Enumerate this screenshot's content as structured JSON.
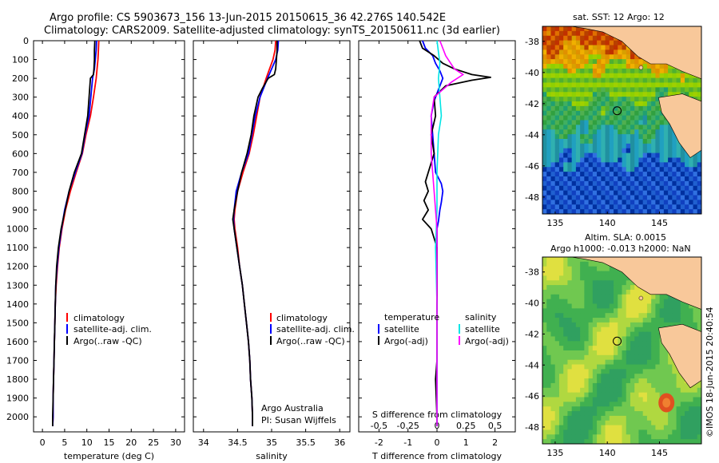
{
  "header": {
    "line1": "Argo profile: CS 5903673_156 13-Jun-2015 20150615_36 42.276S 140.542E",
    "line2": "Climatology: CARS2009. Satellite-adjusted climatology: synTS_20150611.nc (3d earlier)"
  },
  "colors": {
    "climatology": "#ff0000",
    "satellite": "#0000ff",
    "argo": "#000000",
    "sal_satellite": "#00e5e5",
    "sal_argo": "#ff00ff",
    "land": "#f8c89a"
  },
  "chart_data": [
    {
      "type": "line",
      "xlabel": "temperature (deg C)",
      "xlim": [
        -2,
        32
      ],
      "xticks": [
        0,
        5,
        10,
        15,
        20,
        25,
        30
      ],
      "ylim": [
        2080,
        0
      ],
      "yticks": [
        0,
        100,
        200,
        300,
        400,
        500,
        600,
        700,
        800,
        900,
        1000,
        1100,
        1200,
        1300,
        1400,
        1500,
        1600,
        1700,
        1800,
        1900,
        2000
      ],
      "legend": [
        "climatology",
        "satellite-adj. clim.",
        "Argo(..raw -QC)"
      ],
      "series": [
        {
          "name": "climatology",
          "depth": [
            0,
            50,
            100,
            150,
            200,
            300,
            400,
            500,
            600,
            700,
            800,
            900,
            1000,
            1100,
            1200,
            1300,
            1400,
            1500,
            1600,
            1700,
            1800,
            1900,
            2000,
            2050
          ],
          "values": [
            12.7,
            12.6,
            12.5,
            12.3,
            12.1,
            11.5,
            10.8,
            9.8,
            9.0,
            7.6,
            6.3,
            5.2,
            4.4,
            3.8,
            3.4,
            3.1,
            2.9,
            2.8,
            2.7,
            2.6,
            2.5,
            2.4,
            2.4,
            2.3
          ]
        },
        {
          "name": "satellite-adj. clim.",
          "depth": [
            0,
            50,
            100,
            150,
            200,
            300,
            400,
            500,
            600,
            700,
            800,
            900,
            1000,
            1100,
            1200,
            1300,
            1400,
            1500,
            1600,
            1700,
            1800,
            1900,
            2000,
            2050
          ],
          "values": [
            12.2,
            12.1,
            11.9,
            11.7,
            11.3,
            10.9,
            10.5,
            9.6,
            8.9,
            7.4,
            6.0,
            5.0,
            4.3,
            3.7,
            3.3,
            3.0,
            2.9,
            2.8,
            2.7,
            2.6,
            2.5,
            2.4,
            2.4,
            2.3
          ]
        },
        {
          "name": "Argo(..raw -QC)",
          "depth": [
            0,
            50,
            100,
            150,
            180,
            200,
            300,
            400,
            500,
            600,
            700,
            800,
            900,
            1000,
            1100,
            1200,
            1300,
            1400,
            1500,
            1600,
            1700,
            1800,
            1900,
            2000,
            2050
          ],
          "values": [
            11.8,
            11.7,
            11.7,
            11.6,
            11.5,
            10.8,
            10.5,
            10.2,
            9.5,
            8.8,
            7.2,
            6.0,
            5.1,
            4.2,
            3.6,
            3.2,
            3.0,
            2.9,
            2.8,
            2.7,
            2.6,
            2.5,
            2.4,
            2.3,
            2.3
          ]
        }
      ]
    },
    {
      "type": "line",
      "xlabel": "salinity",
      "xlim": [
        33.85,
        36.15
      ],
      "xticks": [
        34,
        34.5,
        35,
        35.5,
        36
      ],
      "ylim": [
        2080,
        0
      ],
      "legend": [
        "climatology",
        "satellite-adj. clim.",
        "Argo(..raw -QC)"
      ],
      "annotation": [
        "Argo Australia",
        "PI: Susan Wijffels"
      ],
      "series": [
        {
          "name": "climatology",
          "depth": [
            0,
            50,
            100,
            150,
            200,
            300,
            400,
            500,
            600,
            700,
            800,
            900,
            950,
            1000,
            1100,
            1200,
            1300,
            1400,
            1500,
            1600,
            1700,
            1800,
            1900,
            2000,
            2050
          ],
          "values": [
            35.06,
            35.05,
            35.02,
            34.97,
            34.92,
            34.83,
            34.78,
            34.73,
            34.67,
            34.58,
            34.5,
            34.46,
            34.45,
            34.46,
            34.5,
            34.53,
            34.57,
            34.6,
            34.63,
            34.66,
            34.68,
            34.69,
            34.71,
            34.72,
            34.72
          ]
        },
        {
          "name": "satellite-adj. clim.",
          "depth": [
            0,
            50,
            100,
            150,
            200,
            300,
            400,
            500,
            600,
            700,
            800,
            900,
            950,
            1000,
            1100,
            1200,
            1300,
            1400,
            1500,
            1600,
            1700,
            1800,
            1900,
            2000,
            2050
          ],
          "values": [
            35.1,
            35.09,
            35.06,
            35.0,
            34.94,
            34.83,
            34.76,
            34.71,
            34.66,
            34.56,
            34.48,
            34.45,
            34.44,
            34.45,
            34.49,
            34.53,
            34.57,
            34.6,
            34.63,
            34.66,
            34.68,
            34.69,
            34.71,
            34.72,
            34.72
          ]
        },
        {
          "name": "Argo(..raw -QC)",
          "depth": [
            0,
            50,
            100,
            150,
            180,
            200,
            250,
            300,
            400,
            500,
            600,
            700,
            800,
            900,
            950,
            1000,
            1100,
            1200,
            1300,
            1400,
            1500,
            1600,
            1700,
            1800,
            1900,
            2000,
            2050
          ],
          "values": [
            35.08,
            35.08,
            35.07,
            35.06,
            35.04,
            34.95,
            34.87,
            34.8,
            34.74,
            34.7,
            34.64,
            34.56,
            34.5,
            34.45,
            34.43,
            34.45,
            34.49,
            34.53,
            34.57,
            34.6,
            34.63,
            34.66,
            34.68,
            34.69,
            34.71,
            34.72,
            34.72
          ]
        }
      ]
    },
    {
      "type": "line",
      "xlabel": "T difference from climatology",
      "xlabel_top": "S difference from climatology",
      "xlim": [
        -2.7,
        2.7
      ],
      "xticks": [
        -2,
        -1,
        0,
        1,
        2
      ],
      "xticks_top": [
        -0.5,
        -0.25,
        0,
        0.25,
        0.5
      ],
      "ylim": [
        2080,
        0
      ],
      "legend": {
        "temperature": "temperature",
        "salinity": "salinity",
        "items": [
          "satellite",
          "Argo(-adj)",
          "satellite",
          "Argo(-adj)"
        ]
      },
      "series": [
        {
          "name": "satellite",
          "depth": [
            0,
            40,
            80,
            120,
            160,
            200,
            260,
            320,
            400,
            500,
            600,
            700,
            760,
            800,
            860,
            900,
            960,
            1000,
            1100,
            1200,
            1400,
            1600,
            1800,
            2000,
            2050
          ],
          "values": [
            -0.5,
            -0.4,
            -0.15,
            -0.05,
            0.1,
            0.2,
            0.05,
            -0.1,
            -0.2,
            -0.15,
            -0.1,
            -0.05,
            0.15,
            0.2,
            0.15,
            0.1,
            0.05,
            0.0,
            0.0,
            0.0,
            0.0,
            0.0,
            0.0,
            0.0,
            0.0
          ]
        },
        {
          "name": "Argo(-adj)",
          "depth": [
            0,
            40,
            80,
            120,
            150,
            180,
            195,
            210,
            240,
            300,
            400,
            500,
            600,
            700,
            750,
            800,
            850,
            900,
            950,
            1000,
            1050,
            1100,
            1200,
            1400,
            1600,
            1700,
            1800,
            2000,
            2050
          ],
          "values": [
            -0.6,
            -0.5,
            -0.1,
            0.2,
            0.6,
            1.2,
            1.85,
            1.2,
            0.3,
            -0.1,
            -0.05,
            -0.2,
            -0.1,
            -0.3,
            -0.4,
            -0.3,
            -0.45,
            -0.3,
            -0.5,
            -0.2,
            -0.1,
            0.0,
            0.0,
            0.0,
            0.0,
            0.0,
            -0.05,
            0.0,
            0.0
          ]
        }
      ]
    }
  ],
  "map_sst": {
    "title": "sat. SST: 12 Argo: 12",
    "xticks": [
      "135",
      "140",
      "145"
    ],
    "yticks": [
      "-38",
      "-40",
      "-42",
      "-44",
      "-46",
      "-48"
    ]
  },
  "map_sla": {
    "title1": "Altim. SLA: 0.0015",
    "title2": "Argo h1000: -0.013 h2000: NaN",
    "xticks": [
      "135",
      "140",
      "145"
    ],
    "yticks": [
      "-38",
      "-40",
      "-42",
      "-44",
      "-46",
      "-48"
    ],
    "credit": "©IMOS 18-Jun-2015 20:40:54"
  }
}
